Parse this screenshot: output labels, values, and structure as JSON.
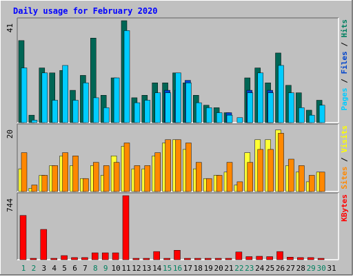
{
  "chart_data": [
    {
      "type": "bar",
      "panel": "pages-files-hits",
      "title": "Daily usage for February 2020",
      "ymax_label": "41",
      "ylim": [
        0,
        41
      ],
      "right_label_parts": [
        {
          "text": "Pages",
          "color": "#00CCFF"
        },
        {
          "text": " / ",
          "color": "#000000"
        },
        {
          "text": "Files",
          "color": "#0044CC"
        },
        {
          "text": " / ",
          "color": "#000000"
        },
        {
          "text": "Hits",
          "color": "#008060"
        }
      ],
      "series": [
        {
          "name": "Hits",
          "color": "#006655",
          "values": [
            33,
            3,
            22,
            20,
            21,
            13,
            19,
            34,
            11,
            18,
            41,
            10,
            11,
            16,
            16,
            20,
            16,
            11,
            7,
            6,
            4,
            0,
            18,
            22,
            16,
            28,
            15,
            12,
            5,
            9
          ]
        },
        {
          "name": "Files",
          "color": "#0044CC",
          "values": [
            0,
            0,
            0,
            0,
            0,
            0,
            0,
            0,
            0,
            0,
            0,
            0,
            0,
            0,
            13,
            13,
            17,
            0,
            0,
            0,
            4,
            0,
            13,
            0,
            13,
            0,
            0,
            0,
            0,
            0
          ]
        },
        {
          "name": "Pages",
          "color": "#00CCFF",
          "values": [
            22,
            1,
            20,
            9,
            23,
            9,
            16,
            10,
            6,
            18,
            37,
            8,
            9,
            12,
            12,
            20,
            16,
            8,
            6,
            4,
            3,
            2,
            12,
            20,
            12,
            23,
            12,
            6,
            3,
            7
          ]
        }
      ]
    },
    {
      "type": "bar",
      "panel": "sites-visits",
      "ymax_label": "20",
      "ylim": [
        0,
        20
      ],
      "right_label_parts": [
        {
          "text": "Sites",
          "color": "#FF8800"
        },
        {
          "text": " / ",
          "color": "#000000"
        },
        {
          "text": "Visits",
          "color": "#FFFF00"
        }
      ],
      "series": [
        {
          "name": "Visits",
          "color": "#FFFF33",
          "values": [
            7,
            1,
            5,
            8,
            11,
            8,
            4,
            8,
            5,
            11,
            14,
            7,
            7,
            11,
            15,
            16,
            13,
            7,
            4,
            5,
            6,
            2,
            12,
            16,
            16,
            19,
            8,
            6,
            3,
            6
          ]
        },
        {
          "name": "Sites",
          "color": "#FF8800",
          "values": [
            12,
            2,
            5,
            8,
            12,
            11,
            4,
            9,
            8,
            9,
            15,
            8,
            8,
            12,
            16,
            16,
            15,
            9,
            4,
            5,
            9,
            3,
            9,
            13,
            13,
            18,
            10,
            8,
            5,
            6
          ]
        }
      ]
    },
    {
      "type": "bar",
      "panel": "kbytes",
      "ymax_label": "744",
      "ylim": [
        0,
        744
      ],
      "right_label_parts": [
        {
          "text": "KBytes",
          "color": "#FF0000"
        }
      ],
      "series": [
        {
          "name": "KBytes",
          "color": "#FF0000",
          "values": [
            514,
            0,
            352,
            0,
            48,
            25,
            25,
            80,
            80,
            80,
            744,
            0,
            0,
            95,
            0,
            110,
            0,
            0,
            0,
            0,
            0,
            90,
            36,
            40,
            36,
            95,
            30,
            25,
            25,
            0
          ]
        }
      ]
    }
  ],
  "days": {
    "labels": [
      "1",
      "2",
      "3",
      "4",
      "5",
      "6",
      "7",
      "8",
      "9",
      "10",
      "11",
      "12",
      "13",
      "14",
      "15",
      "16",
      "17",
      "18",
      "19",
      "20",
      "21",
      "22",
      "23",
      "24",
      "25",
      "26",
      "27",
      "28",
      "29",
      "30",
      "31"
    ],
    "weekend_color": "#00805F",
    "weekday_color": "#000000",
    "weekend": [
      1,
      2,
      8,
      9,
      15,
      16,
      22,
      23,
      29,
      30
    ]
  },
  "colors": {
    "background": "#C0C0C0",
    "plot_background": "#C0C0C0",
    "title": "#0000FF"
  }
}
